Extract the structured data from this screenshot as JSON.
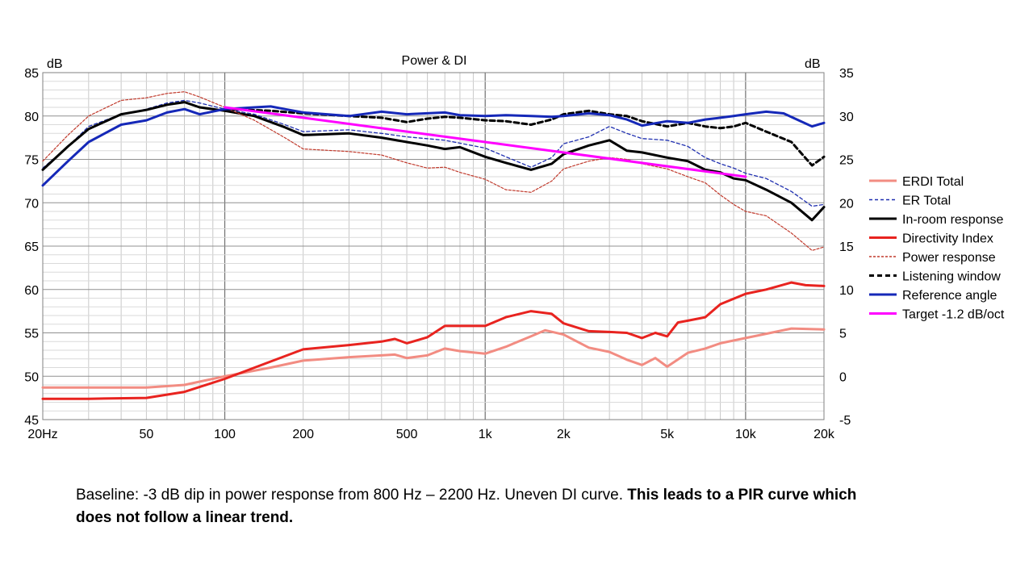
{
  "chart_data": {
    "type": "line",
    "title": "Power & DI",
    "x_scale": "log",
    "xlim": [
      20,
      20000
    ],
    "x_tick_values": [
      20,
      50,
      100,
      200,
      500,
      1000,
      2000,
      5000,
      10000,
      20000
    ],
    "x_tick_labels": [
      "20Hz",
      "50",
      "100",
      "200",
      "500",
      "1k",
      "2k",
      "5k",
      "10k",
      "20k"
    ],
    "y_left": {
      "unit": "dB",
      "ylim": [
        45,
        85
      ],
      "ticks": [
        45,
        50,
        55,
        60,
        65,
        70,
        75,
        80,
        85
      ]
    },
    "y_right": {
      "unit": "dB",
      "ylim": [
        -5,
        35
      ],
      "ticks": [
        -5,
        0,
        5,
        10,
        15,
        20,
        25,
        30,
        35
      ]
    },
    "grid": true,
    "legend_position": "right",
    "series": [
      {
        "name": "ERDI Total",
        "axis": "right",
        "color": "#f28c82",
        "width": 3,
        "dash": "",
        "x": [
          20,
          30,
          50,
          70,
          100,
          150,
          200,
          300,
          400,
          450,
          500,
          600,
          700,
          800,
          1000,
          1200,
          1500,
          1700,
          2000,
          2500,
          3000,
          3500,
          4000,
          4500,
          5000,
          6000,
          7000,
          8000,
          10000,
          12000,
          15000,
          20000
        ],
        "y": [
          -1.3,
          -1.3,
          -1.3,
          -1.0,
          0.0,
          1.0,
          1.8,
          2.2,
          2.4,
          2.5,
          2.1,
          2.4,
          3.2,
          2.9,
          2.6,
          3.4,
          4.6,
          5.3,
          4.8,
          3.3,
          2.8,
          1.9,
          1.3,
          2.1,
          1.1,
          2.7,
          3.2,
          3.8,
          4.4,
          4.9,
          5.5,
          5.4
        ]
      },
      {
        "name": "ER Total",
        "axis": "left",
        "color": "#1f2fb0",
        "width": 1.3,
        "dash": "4 3",
        "x": [
          20,
          25,
          30,
          40,
          50,
          60,
          70,
          80,
          100,
          130,
          170,
          200,
          300,
          400,
          500,
          700,
          1000,
          1200,
          1500,
          1800,
          2000,
          2500,
          3000,
          3500,
          4000,
          5000,
          6000,
          7000,
          8000,
          9000,
          10000,
          12000,
          15000,
          18000,
          20000
        ],
        "y": [
          74.0,
          76.5,
          78.8,
          80.2,
          80.8,
          81.5,
          81.8,
          81.5,
          80.8,
          80.2,
          79.0,
          78.2,
          78.4,
          78.0,
          77.6,
          77.2,
          76.3,
          75.3,
          74.1,
          75.2,
          76.8,
          77.6,
          78.8,
          78.0,
          77.4,
          77.2,
          76.5,
          75.2,
          74.5,
          74.0,
          73.4,
          72.8,
          71.3,
          69.6,
          69.8
        ]
      },
      {
        "name": "In-room response",
        "axis": "left",
        "color": "#000000",
        "width": 3,
        "dash": "",
        "x": [
          20,
          25,
          30,
          40,
          50,
          60,
          70,
          80,
          100,
          130,
          170,
          200,
          300,
          400,
          500,
          600,
          700,
          800,
          1000,
          1200,
          1500,
          1800,
          2000,
          2500,
          3000,
          3500,
          4000,
          5000,
          6000,
          7000,
          8000,
          9000,
          10000,
          12000,
          15000,
          18000,
          20000
        ],
        "y": [
          73.8,
          76.5,
          78.5,
          80.2,
          80.7,
          81.3,
          81.6,
          81.0,
          80.6,
          80.0,
          78.7,
          77.8,
          78.0,
          77.5,
          77.0,
          76.6,
          76.2,
          76.4,
          75.3,
          74.6,
          73.8,
          74.5,
          75.6,
          76.6,
          77.2,
          76.0,
          75.8,
          75.2,
          74.8,
          73.8,
          73.5,
          72.8,
          72.6,
          71.5,
          70.0,
          68.0,
          69.5
        ]
      },
      {
        "name": "Directivity Index",
        "axis": "right",
        "color": "#e8231f",
        "width": 3,
        "dash": "",
        "x": [
          20,
          30,
          50,
          70,
          100,
          150,
          200,
          300,
          400,
          450,
          500,
          600,
          700,
          800,
          1000,
          1200,
          1500,
          1800,
          2000,
          2500,
          3000,
          3500,
          4000,
          4500,
          5000,
          5500,
          6000,
          7000,
          8000,
          10000,
          12000,
          15000,
          17000,
          20000
        ],
        "y": [
          -2.6,
          -2.6,
          -2.5,
          -1.8,
          -0.3,
          1.7,
          3.1,
          3.6,
          4.0,
          4.3,
          3.8,
          4.5,
          5.8,
          5.8,
          5.8,
          6.8,
          7.5,
          7.2,
          6.1,
          5.2,
          5.1,
          5.0,
          4.4,
          5.0,
          4.6,
          6.2,
          6.4,
          6.8,
          8.3,
          9.5,
          10.0,
          10.8,
          10.5,
          10.4
        ]
      },
      {
        "name": "Power response",
        "axis": "left",
        "color": "#c0392b",
        "width": 1.2,
        "dash": "3 2",
        "x": [
          20,
          25,
          30,
          40,
          50,
          60,
          70,
          80,
          100,
          130,
          170,
          200,
          300,
          400,
          500,
          600,
          700,
          800,
          1000,
          1200,
          1500,
          1800,
          2000,
          2500,
          3000,
          3500,
          4000,
          5000,
          6000,
          7000,
          8000,
          9000,
          10000,
          12000,
          15000,
          18000,
          20000
        ],
        "y": [
          74.8,
          77.8,
          80.0,
          81.8,
          82.1,
          82.6,
          82.8,
          82.2,
          81.0,
          79.5,
          77.5,
          76.2,
          75.9,
          75.5,
          74.6,
          74.0,
          74.1,
          73.5,
          72.7,
          71.5,
          71.2,
          72.5,
          73.9,
          74.8,
          75.2,
          75.0,
          74.5,
          73.9,
          73.0,
          72.3,
          70.9,
          69.8,
          69.0,
          68.5,
          66.5,
          64.5,
          64.9
        ]
      },
      {
        "name": "Listening window",
        "axis": "left",
        "color": "#000000",
        "width": 3,
        "dash": "6 4",
        "x": [
          100,
          150,
          200,
          300,
          400,
          500,
          600,
          700,
          800,
          1000,
          1200,
          1500,
          1800,
          2000,
          2500,
          3000,
          3500,
          4000,
          5000,
          6000,
          7000,
          8000,
          9000,
          10000,
          12000,
          15000,
          18000,
          20000
        ],
        "y": [
          80.8,
          80.6,
          80.3,
          80.0,
          79.8,
          79.3,
          79.7,
          79.9,
          79.8,
          79.5,
          79.4,
          79.0,
          79.6,
          80.2,
          80.6,
          80.2,
          80.0,
          79.4,
          78.8,
          79.2,
          78.8,
          78.6,
          78.8,
          79.2,
          78.2,
          77.0,
          74.3,
          75.3
        ]
      },
      {
        "name": "Reference angle",
        "axis": "left",
        "color": "#1528b8",
        "width": 3,
        "dash": "",
        "x": [
          20,
          25,
          30,
          40,
          50,
          60,
          70,
          80,
          100,
          130,
          150,
          170,
          200,
          300,
          400,
          500,
          700,
          800,
          1000,
          1200,
          1500,
          1800,
          2000,
          2500,
          3000,
          3500,
          4000,
          5000,
          6000,
          7000,
          8000,
          9000,
          10000,
          12000,
          14000,
          16000,
          18000,
          20000
        ],
        "y": [
          72.0,
          74.8,
          77.0,
          79.0,
          79.5,
          80.4,
          80.8,
          80.2,
          80.8,
          81.0,
          81.1,
          80.8,
          80.4,
          80.0,
          80.5,
          80.2,
          80.4,
          80.1,
          80.0,
          80.1,
          80.0,
          79.9,
          80.0,
          80.3,
          80.1,
          79.6,
          78.9,
          79.4,
          79.2,
          79.6,
          79.8,
          80.0,
          80.2,
          80.5,
          80.3,
          79.5,
          78.8,
          79.2
        ]
      },
      {
        "name": "Target -1.2 dB/oct",
        "axis": "left",
        "color": "#ff00ff",
        "width": 3,
        "dash": "",
        "x": [
          100,
          10000
        ],
        "y": [
          81.0,
          73.0
        ]
      }
    ]
  },
  "caption": {
    "regular": "Baseline:  -3 dB dip in power response from 800 Hz – 2200 Hz.  Uneven DI curve.  ",
    "bold": "This leads to a PIR curve which does not follow a linear trend."
  }
}
